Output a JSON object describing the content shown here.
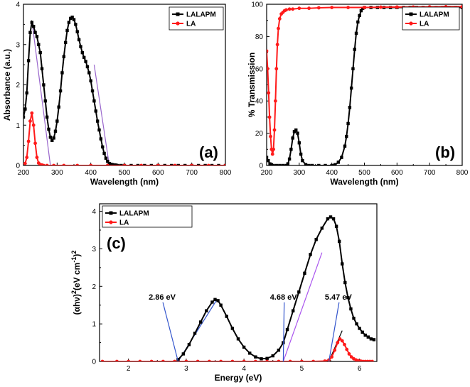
{
  "colors": {
    "lalapm": "#000000",
    "la": "#ff1a1a",
    "fit_a": "#9966cc",
    "fit_c_black": "#3355cc",
    "fit_c_violet": "#aa55ee",
    "fit_c_red_tangent": "#000000"
  },
  "chart_data": [
    {
      "id": "a",
      "type": "line",
      "panel_label": "(a)",
      "xlabel": "Wavelength (nm)",
      "ylabel": "Absorbance (a.u.)",
      "xlim": [
        200,
        800
      ],
      "ylim": [
        0,
        4
      ],
      "xticks": [
        200,
        300,
        400,
        500,
        600,
        700,
        800
      ],
      "yticks": [
        0,
        1,
        2,
        3,
        4
      ],
      "legend": [
        "LALAPM",
        "LA"
      ],
      "series": [
        {
          "name": "LALAPM",
          "color": "#000000",
          "marker": "square",
          "x": [
            200,
            205,
            210,
            215,
            220,
            225,
            230,
            235,
            240,
            245,
            250,
            255,
            260,
            265,
            270,
            275,
            280,
            285,
            290,
            295,
            300,
            305,
            310,
            315,
            320,
            325,
            330,
            335,
            340,
            345,
            350,
            355,
            360,
            365,
            370,
            375,
            380,
            385,
            390,
            395,
            400,
            405,
            410,
            415,
            420,
            425,
            430,
            435,
            440,
            445,
            450,
            455,
            460,
            465,
            470,
            475,
            480,
            490,
            500,
            520,
            540,
            560,
            580,
            600,
            620,
            640,
            660,
            680,
            700,
            720,
            740,
            760,
            780,
            800
          ],
          "y": [
            1.2,
            1.4,
            1.8,
            2.6,
            3.3,
            3.55,
            3.45,
            3.3,
            3.2,
            3.0,
            2.8,
            2.4,
            2.0,
            1.6,
            1.2,
            0.9,
            0.7,
            0.62,
            0.68,
            0.85,
            1.1,
            1.45,
            1.85,
            2.3,
            2.7,
            3.05,
            3.35,
            3.55,
            3.65,
            3.68,
            3.62,
            3.5,
            3.32,
            3.12,
            2.95,
            2.8,
            2.68,
            2.58,
            2.45,
            2.3,
            2.1,
            1.85,
            1.6,
            1.35,
            1.1,
            0.88,
            0.66,
            0.46,
            0.3,
            0.18,
            0.1,
            0.05,
            0.03,
            0.02,
            0.01,
            0.01,
            0.0,
            0.0,
            0.0,
            0.0,
            0.0,
            0.0,
            0.0,
            0.0,
            0.0,
            0.0,
            0.0,
            0.0,
            0.0,
            0.0,
            0.0,
            0.0,
            0.0,
            0.0
          ]
        },
        {
          "name": "LA",
          "color": "#ff1a1a",
          "marker": "circle",
          "x": [
            205,
            210,
            215,
            220,
            225,
            230,
            235,
            240,
            245,
            250,
            255,
            260,
            270,
            290,
            320,
            360,
            400,
            450,
            500,
            550,
            600,
            650,
            700,
            750,
            800
          ],
          "y": [
            0.05,
            0.2,
            0.6,
            1.1,
            1.3,
            1.0,
            0.55,
            0.2,
            0.06,
            0.02,
            0.01,
            0.0,
            0.0,
            0.0,
            0.0,
            0.0,
            0.0,
            0.0,
            0.0,
            0.0,
            0.0,
            0.0,
            0.0,
            0.0,
            0.0
          ]
        }
      ],
      "fit_lines": [
        {
          "color": "#9966cc",
          "x": [
            228,
            280
          ],
          "y": [
            3.4,
            0.0
          ]
        },
        {
          "color": "#9966cc",
          "x": [
            410,
            455
          ],
          "y": [
            2.5,
            0.0
          ]
        }
      ]
    },
    {
      "id": "b",
      "type": "line",
      "panel_label": "(b)",
      "xlabel": "Wavelength (nm)",
      "ylabel": "% Transmission",
      "xlim": [
        200,
        800
      ],
      "ylim": [
        0,
        100
      ],
      "xticks": [
        200,
        300,
        400,
        500,
        600,
        700,
        800
      ],
      "yticks": [
        0,
        20,
        40,
        60,
        80,
        100
      ],
      "legend": [
        "LALAPM",
        "LA"
      ],
      "series": [
        {
          "name": "LALAPM",
          "color": "#000000",
          "marker": "square",
          "x": [
            200,
            205,
            210,
            215,
            220,
            230,
            240,
            250,
            260,
            265,
            270,
            275,
            280,
            285,
            290,
            295,
            300,
            305,
            310,
            320,
            330,
            340,
            360,
            380,
            400,
            410,
            420,
            430,
            440,
            445,
            450,
            455,
            460,
            465,
            470,
            475,
            480,
            485,
            490,
            495,
            500,
            520,
            540,
            560,
            580,
            600,
            620,
            640,
            660,
            680,
            700,
            720,
            740,
            760,
            780,
            800
          ],
          "y": [
            5,
            3,
            1,
            0.5,
            0,
            0,
            0,
            0,
            0,
            1,
            4,
            10,
            17,
            21,
            22,
            20,
            14,
            7,
            3,
            0.5,
            0,
            0,
            0,
            0,
            0,
            0.5,
            2,
            5,
            12,
            18,
            26,
            36,
            48,
            60,
            72,
            82,
            89,
            93,
            96,
            97.5,
            98,
            98,
            98,
            98,
            98,
            98,
            98,
            98,
            98,
            98,
            98,
            98,
            98,
            98,
            98,
            98
          ]
        },
        {
          "name": "LA",
          "color": "#ff1a1a",
          "marker": "circle",
          "x": [
            200,
            203,
            206,
            209,
            212,
            215,
            218,
            221,
            224,
            227,
            230,
            233,
            236,
            240,
            245,
            250,
            255,
            260,
            270,
            280,
            300,
            330,
            360,
            400,
            450,
            500,
            550,
            600,
            650,
            700,
            750,
            800
          ],
          "y": [
            71,
            60,
            45,
            30,
            18,
            10,
            7,
            10,
            22,
            40,
            60,
            75,
            85,
            91,
            94,
            95,
            96,
            96.5,
            97,
            97,
            97.5,
            97.5,
            97.8,
            98,
            98,
            98,
            98.2,
            98.3,
            98.3,
            98.4,
            98.5,
            98.5
          ]
        }
      ]
    },
    {
      "id": "c",
      "type": "line",
      "panel_label": "(c)",
      "xlabel": "Energy (eV)",
      "ylabel": "(αhν)²(eV cm⁻¹)²",
      "ylabel_parts": {
        "base": "(αhν)",
        "sup1": "2",
        "mid": "(eV cm",
        "sup2": "-1",
        "end": ")",
        "sup3": "2"
      },
      "xlim": [
        1.5,
        6.3
      ],
      "ylim": [
        0,
        4.2
      ],
      "xticks": [
        2,
        3,
        4,
        5,
        6
      ],
      "yticks": [
        0,
        1,
        2,
        3,
        4
      ],
      "legend": [
        "LALAPM",
        "LA"
      ],
      "series": [
        {
          "name": "LALAPM",
          "color": "#000000",
          "marker": "square",
          "x": [
            2.86,
            2.95,
            3.05,
            3.15,
            3.25,
            3.35,
            3.45,
            3.5,
            3.55,
            3.6,
            3.7,
            3.8,
            3.9,
            4.0,
            4.1,
            4.2,
            4.3,
            4.4,
            4.5,
            4.6,
            4.68,
            4.75,
            4.85,
            4.95,
            5.05,
            5.15,
            5.25,
            5.35,
            5.45,
            5.5,
            5.55,
            5.6,
            5.65,
            5.7,
            5.75,
            5.8,
            5.85,
            5.9,
            5.95,
            6.0,
            6.05,
            6.1,
            6.15,
            6.2,
            6.25
          ],
          "y": [
            0.05,
            0.2,
            0.45,
            0.75,
            1.05,
            1.35,
            1.58,
            1.65,
            1.62,
            1.5,
            1.2,
            0.88,
            0.6,
            0.38,
            0.22,
            0.12,
            0.07,
            0.08,
            0.15,
            0.3,
            0.5,
            0.85,
            1.35,
            1.85,
            2.35,
            2.85,
            3.25,
            3.55,
            3.8,
            3.85,
            3.8,
            3.6,
            3.2,
            2.6,
            2.1,
            1.7,
            1.4,
            1.15,
            1.0,
            0.88,
            0.78,
            0.7,
            0.65,
            0.6,
            0.58
          ]
        },
        {
          "name": "LA",
          "color": "#ff1a1a",
          "marker": "circle",
          "x": [
            1.55,
            1.8,
            2.0,
            2.2,
            2.4,
            2.6,
            2.8,
            3.0,
            3.2,
            3.4,
            3.6,
            3.8,
            4.0,
            4.2,
            4.4,
            4.6,
            4.8,
            5.0,
            5.2,
            5.4,
            5.47,
            5.52,
            5.57,
            5.62,
            5.66,
            5.7,
            5.74,
            5.78,
            5.82,
            5.86,
            5.9,
            5.94,
            5.98,
            6.02,
            6.06,
            6.1,
            6.14,
            6.18,
            6.22
          ],
          "y": [
            0,
            0,
            0,
            0,
            0,
            0,
            0,
            0,
            0,
            0,
            0,
            0,
            0,
            0,
            0,
            0,
            0,
            0,
            0,
            0.01,
            0.04,
            0.12,
            0.3,
            0.5,
            0.6,
            0.55,
            0.45,
            0.32,
            0.2,
            0.12,
            0.07,
            0.04,
            0.02,
            0.01,
            0.0,
            0.0,
            0.0,
            0.0,
            0.0
          ]
        }
      ],
      "fit_lines": [
        {
          "color": "#3355cc",
          "x": [
            2.86,
            3.52
          ],
          "y": [
            0.0,
            1.62
          ]
        },
        {
          "color": "#aa55ee",
          "x": [
            4.68,
            5.35
          ],
          "y": [
            0.0,
            2.9
          ]
        },
        {
          "color": "#000000",
          "x": [
            5.47,
            5.7
          ],
          "y": [
            0.0,
            0.82
          ]
        }
      ],
      "annotations": [
        {
          "text": "2.86 eV",
          "x": 2.86,
          "y": 0.0,
          "label_x": 2.35,
          "label_y": 1.65
        },
        {
          "text": "4.68 eV",
          "x": 4.68,
          "y": 0.0,
          "label_x": 4.45,
          "label_y": 1.65
        },
        {
          "text": "5.47 eV",
          "x": 5.47,
          "y": 0.0,
          "label_x": 5.4,
          "label_y": 1.65
        }
      ]
    }
  ]
}
